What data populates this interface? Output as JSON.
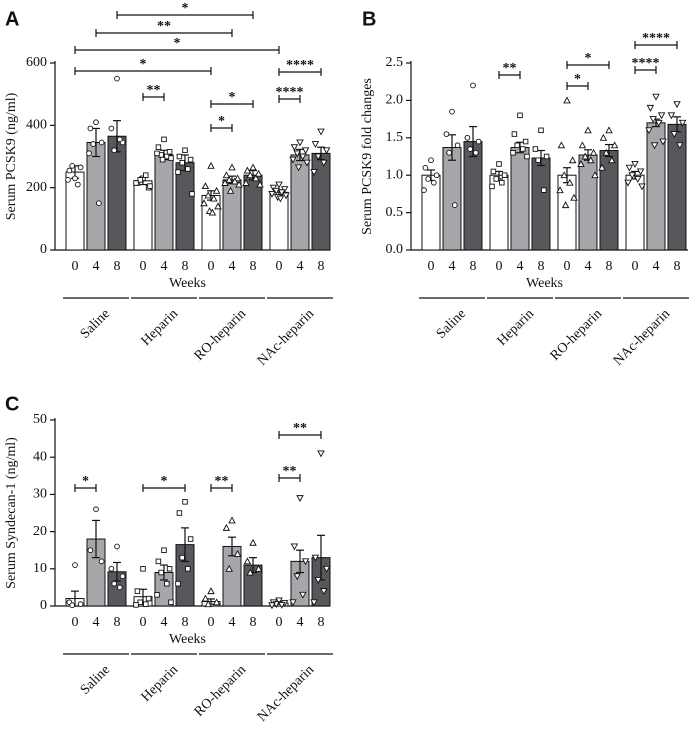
{
  "chart_data": [
    {
      "panel": "A",
      "type": "bar",
      "ylabel": "Serum PCSK9 (ng/ml)",
      "xlabel": "Weeks",
      "groups": [
        "Saline",
        "Heparin",
        "RO-heparin",
        "NAc-heparin"
      ],
      "categories": [
        "0",
        "4",
        "8",
        "0",
        "4",
        "8",
        "0",
        "4",
        "8",
        "0",
        "4",
        "8"
      ],
      "colors": [
        "#ffffff",
        "#a7a7ab",
        "#58585c"
      ],
      "values": [
        250,
        345,
        365,
        222,
        305,
        280,
        175,
        225,
        240,
        185,
        305,
        310
      ],
      "errors": [
        20,
        45,
        50,
        12,
        15,
        25,
        15,
        12,
        15,
        8,
        18,
        20
      ],
      "points": [
        [
          230,
          255,
          265,
          270,
          210,
          225
        ],
        [
          410,
          390,
          345,
          340,
          150,
          310
        ],
        [
          550,
          390,
          345,
          320,
          355
        ],
        [
          230,
          215,
          200,
          225,
          240,
          215,
          205
        ],
        [
          355,
          330,
          315,
          305,
          300,
          310,
          295,
          290
        ],
        [
          320,
          300,
          290,
          280,
          260,
          250,
          180
        ],
        [
          270,
          205,
          190,
          175,
          165,
          150,
          140,
          125,
          120
        ],
        [
          265,
          240,
          230,
          225,
          220,
          215,
          210,
          190
        ],
        [
          265,
          255,
          245,
          240,
          230,
          215,
          210
        ],
        [
          210,
          200,
          195,
          190,
          185,
          180,
          175,
          170,
          165
        ],
        [
          345,
          330,
          320,
          310,
          300,
          290,
          280,
          265
        ],
        [
          380,
          340,
          320,
          300,
          280,
          250
        ]
      ],
      "ylim": [
        0,
        600
      ],
      "yticks": [
        0,
        200,
        400,
        600
      ],
      "brackets": [
        {
          "label": "*",
          "between": [
            2,
            8
          ]
        },
        {
          "label": "**",
          "between": [
            1,
            7
          ]
        },
        {
          "label": "*",
          "between": [
            0,
            9
          ]
        },
        {
          "label": "*",
          "between": [
            0,
            6
          ]
        },
        {
          "label": "**",
          "between": [
            3,
            4
          ]
        },
        {
          "label": "*",
          "between": [
            6,
            7
          ]
        },
        {
          "label": "*",
          "between": [
            6,
            8
          ]
        },
        {
          "label": "****",
          "between": [
            9,
            11
          ]
        },
        {
          "label": "****",
          "between": [
            9,
            10
          ]
        }
      ]
    },
    {
      "panel": "B",
      "type": "bar",
      "ylabel": "Serum PCSK9 fold changes",
      "xlabel": "Weeks",
      "groups": [
        "Saline",
        "Heparin",
        "RO-heparin",
        "NAc-heparin"
      ],
      "categories": [
        "0",
        "4",
        "8",
        "0",
        "4",
        "8",
        "0",
        "4",
        "8",
        "0",
        "4",
        "8"
      ],
      "colors": [
        "#ffffff",
        "#a7a7ab",
        "#58585c"
      ],
      "values": [
        1.0,
        1.37,
        1.45,
        1.0,
        1.37,
        1.23,
        1.0,
        1.27,
        1.33,
        1.0,
        1.7,
        1.68
      ],
      "errors": [
        0.07,
        0.17,
        0.2,
        0.05,
        0.07,
        0.1,
        0.1,
        0.07,
        0.08,
        0.05,
        0.05,
        0.1
      ],
      "points": [
        [
          1.2,
          1.1,
          1.0,
          0.95,
          0.9,
          0.8
        ],
        [
          1.85,
          1.55,
          1.4,
          1.3,
          0.6
        ],
        [
          2.2,
          1.5,
          1.45,
          1.35,
          1.3
        ],
        [
          1.15,
          1.05,
          1.0,
          0.95,
          0.9,
          0.85
        ],
        [
          1.8,
          1.55,
          1.45,
          1.4,
          1.35,
          1.3,
          1.25
        ],
        [
          1.6,
          1.35,
          1.25,
          1.2,
          0.8
        ],
        [
          2.0,
          1.4,
          1.2,
          1.0,
          0.9,
          0.8,
          0.7,
          0.6
        ],
        [
          1.6,
          1.4,
          1.3,
          1.25,
          1.2,
          1.15,
          1.0
        ],
        [
          1.6,
          1.5,
          1.4,
          1.3,
          1.2,
          1.1
        ],
        [
          1.15,
          1.1,
          1.05,
          1.0,
          0.95,
          0.9,
          0.85
        ],
        [
          2.05,
          1.9,
          1.8,
          1.75,
          1.7,
          1.6,
          1.45,
          1.4
        ],
        [
          1.95,
          1.8,
          1.7,
          1.55,
          1.4
        ]
      ],
      "ylim": [
        0,
        2.5
      ],
      "yticks": [
        {
          "value": 0,
          "label": "0.0"
        },
        0.5,
        {
          "value": 1,
          "label": "1.0"
        },
        1.5,
        {
          "value": 2,
          "label": "2.0"
        },
        2.5
      ],
      "brackets": [
        {
          "label": "**",
          "between": [
            3,
            4
          ]
        },
        {
          "label": "*",
          "between": [
            6,
            8
          ]
        },
        {
          "label": "*",
          "between": [
            6,
            7
          ]
        },
        {
          "label": "****",
          "between": [
            9,
            11
          ]
        },
        {
          "label": "****",
          "between": [
            9,
            10
          ]
        }
      ]
    },
    {
      "panel": "C",
      "type": "bar",
      "ylabel": "Serum Syndecan-1 (ng/ml)",
      "xlabel": "Weeks",
      "groups": [
        "Saline",
        "Heparin",
        "RO-heparin",
        "NAc-heparin"
      ],
      "categories": [
        "0",
        "4",
        "8",
        "0",
        "4",
        "8",
        "0",
        "4",
        "8",
        "0",
        "4",
        "8"
      ],
      "colors": [
        "#ffffff",
        "#a7a7ab",
        "#58585c"
      ],
      "values": [
        2,
        18,
        9.2,
        2.5,
        9,
        16.5,
        1.2,
        16,
        11,
        0.8,
        12,
        13
      ],
      "errors": [
        2,
        5,
        2.5,
        2,
        2,
        4.5,
        0.7,
        2.5,
        2,
        0.3,
        3,
        6
      ],
      "points": [
        [
          11,
          1,
          0.5,
          0.2
        ],
        [
          26,
          15,
          12
        ],
        [
          16,
          10,
          8,
          6,
          5
        ],
        [
          10,
          4,
          2,
          1,
          0.5,
          0.3
        ],
        [
          15,
          12,
          10,
          9,
          6,
          3,
          1
        ],
        [
          28,
          25,
          18,
          13,
          10,
          6
        ],
        [
          4,
          2,
          1,
          0.5
        ],
        [
          23,
          21,
          14,
          10
        ],
        [
          17,
          12,
          10,
          9
        ],
        [
          1.5,
          1,
          0.8,
          0.5,
          0.3,
          0.2
        ],
        [
          29,
          16,
          12,
          8,
          3,
          1
        ],
        [
          41,
          13,
          10,
          7,
          4,
          1
        ]
      ],
      "ylim": [
        0,
        50
      ],
      "yticks": [
        0,
        10,
        20,
        30,
        40,
        50
      ],
      "brackets": [
        {
          "label": "*",
          "between": [
            0,
            1
          ]
        },
        {
          "label": "*",
          "between": [
            3,
            5
          ]
        },
        {
          "label": "**",
          "between": [
            6,
            7
          ]
        },
        {
          "label": "**",
          "between": [
            9,
            11
          ]
        },
        {
          "label": "**",
          "between": [
            9,
            10
          ]
        }
      ]
    }
  ]
}
